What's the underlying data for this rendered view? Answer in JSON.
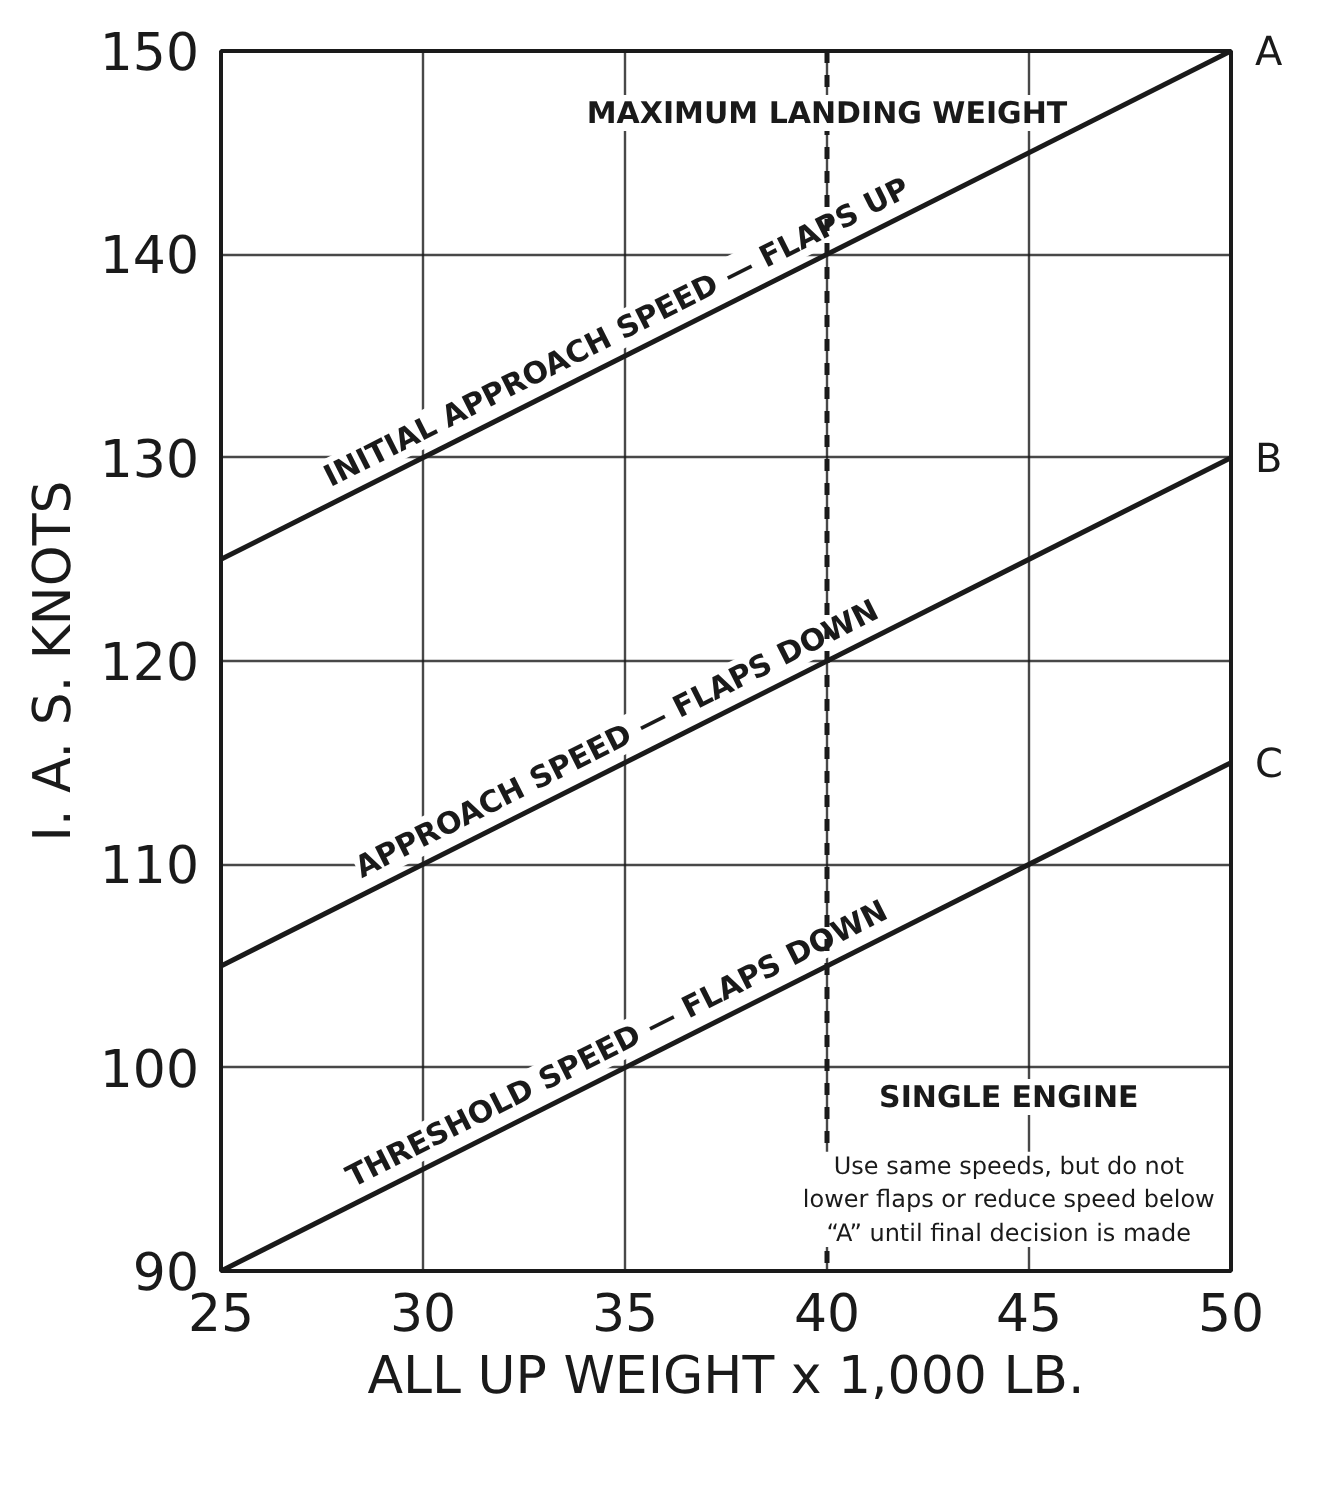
{
  "chart_data": {
    "type": "line",
    "xlabel": "ALL UP WEIGHT x 1,000 LB.",
    "ylabel": "I. A. S. KNOTS",
    "x": [
      25,
      50
    ],
    "series": [
      {
        "name": "A",
        "color": "#1a1a1a",
        "values": [
          125,
          150
        ]
      },
      {
        "name": "B",
        "color": "#1a1a1a",
        "values": [
          105,
          130
        ]
      },
      {
        "name": "C",
        "color": "#1a1a1a",
        "values": [
          90,
          115
        ]
      }
    ],
    "xlim": [
      25,
      50
    ],
    "ylim": [
      90,
      150
    ],
    "xticks": [
      25,
      30,
      35,
      40,
      45,
      50
    ],
    "yticks": [
      90,
      100,
      110,
      120,
      130,
      140,
      150
    ],
    "grid": true,
    "legend": false,
    "marker": "none",
    "line_style": "solid",
    "ref_lines": [
      {
        "axis": "x",
        "value": 40,
        "label": "MAXIMUM LANDING WEIGHT",
        "line_style": "dashed",
        "color": "#1a1a1a"
      }
    ],
    "annotations": [
      "INITIAL APPROACH SPEED — FLAPS UP",
      "APPROACH SPEED — FLAPS DOWN",
      "THRESHOLD SPEED — FLAPS DOWN",
      "SINGLE ENGINE",
      "Use same speeds, but do not\nlower flaps or reduce speed below\n“A” until final decision is made"
    ]
  }
}
